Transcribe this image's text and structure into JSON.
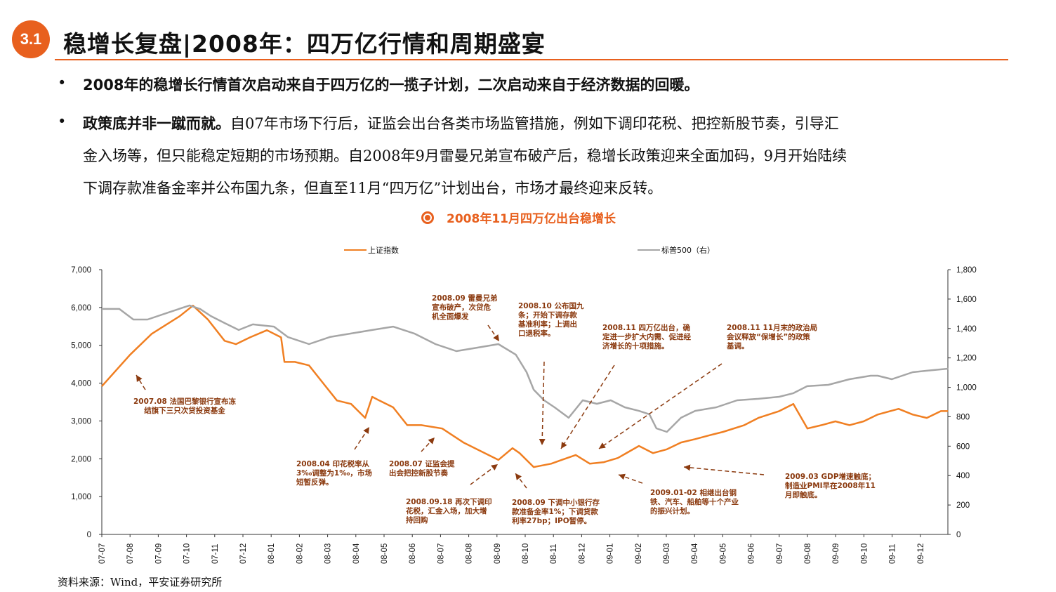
{
  "header": {
    "badge": "3.1",
    "title": "稳增长复盘|2008年：四万亿行情和周期盛宴"
  },
  "bullets": [
    {
      "marker": "•",
      "lines": [
        "2008年的稳增长行情首次启动来自于四万亿的一揽子计划，二次启动来自于经济数据的回暖。"
      ]
    },
    {
      "marker": "•",
      "bold_lead": "政策底并非一蹴而就。",
      "lines": [
        "自07年市场下行后，证监会出台各类市场监管措施，例如下调印花税、把控新股节奏，引导汇",
        "金入场等，但只能稳定短期的市场预期。自2008年9月雷曼兄弟宣布破产后，稳增长政策迎来全面加码，9月开始陆续",
        "下调存款准备金率并公布国九条，但直至11月“四万亿”计划出台，市场才最终迎来反转。"
      ]
    }
  ],
  "figure_title": "2008年11月四万亿出台稳增长",
  "source": "资料来源：Wind，平安证券研究所",
  "colors": {
    "accent": "#E8601E",
    "sse": "#F07F22",
    "sp500": "#A6A6A6",
    "annotation": "#8B3A0F"
  },
  "chart_data": {
    "type": "line",
    "title": "2008年11月四万亿出台稳增长",
    "x_unit": "months since 2007-07",
    "x_tick_labels": [
      "07-07",
      "07-08",
      "07-09",
      "07-10",
      "07-11",
      "07-12",
      "08-01",
      "08-02",
      "08-03",
      "08-04",
      "08-05",
      "08-06",
      "08-07",
      "08-08",
      "08-09",
      "08-10",
      "08-11",
      "08-12",
      "09-01",
      "09-02",
      "09-03",
      "09-04",
      "09-05",
      "09-06",
      "09-07",
      "09-08",
      "09-09",
      "09-10",
      "09-11",
      "09-12"
    ],
    "y_left": {
      "label": "",
      "ylim": [
        0,
        7000
      ],
      "ticks": [
        "0",
        "1,000",
        "2,000",
        "3,000",
        "4,000",
        "5,000",
        "6,000",
        "7,000"
      ]
    },
    "y_right": {
      "label": "",
      "ylim": [
        0,
        1800
      ],
      "ticks": [
        "0",
        "200",
        "400",
        "600",
        "800",
        "1,000",
        "1,200",
        "1,400",
        "1,600",
        "1,800"
      ]
    },
    "legend": {
      "placement": "top",
      "entries": [
        "上证指数",
        "标普500（右）"
      ]
    },
    "series": [
      {
        "name": "上证指数",
        "axis": "left",
        "x": [
          0,
          1.0,
          1.76,
          2.76,
          3.23,
          3.76,
          4.35,
          4.75,
          5.25,
          5.85,
          6.35,
          6.47,
          6.84,
          7.34,
          7.84,
          8.33,
          8.83,
          9.33,
          9.58,
          9.83,
          10.32,
          10.82,
          11.32,
          12.06,
          12.81,
          13.31,
          14.05,
          14.55,
          14.8,
          15.3,
          15.92,
          16.29,
          16.79,
          17.29,
          17.79,
          18.28,
          19.03,
          19.53,
          20.02,
          20.52,
          21.02,
          21.52,
          22.01,
          22.76,
          23.26,
          24.0,
          24.5,
          25.0,
          25.5,
          25.99,
          26.49,
          26.99,
          27.49,
          28.23,
          28.73,
          29.23,
          29.73,
          29.98
        ],
        "values": [
          3915,
          4750,
          5300,
          5770,
          6050,
          5680,
          5120,
          5030,
          5210,
          5400,
          5210,
          4560,
          4560,
          4470,
          4000,
          3540,
          3450,
          3080,
          3640,
          3540,
          3360,
          2890,
          2890,
          2800,
          2430,
          2245,
          1970,
          2280,
          2150,
          1780,
          1870,
          1970,
          2100,
          1870,
          1910,
          2020,
          2340,
          2150,
          2250,
          2430,
          2520,
          2620,
          2710,
          2890,
          3080,
          3260,
          3450,
          2800,
          2890,
          2990,
          2890,
          2990,
          3170,
          3320,
          3170,
          3080,
          3260,
          3260
        ]
      },
      {
        "name": "标普500（右）",
        "axis": "right",
        "x": [
          0,
          0.62,
          1.12,
          1.62,
          2.36,
          3.11,
          3.48,
          3.86,
          4.35,
          4.85,
          5.35,
          6.1,
          6.59,
          7.34,
          8.08,
          8.83,
          9.58,
          10.32,
          11.07,
          11.82,
          12.56,
          13.31,
          14.05,
          14.67,
          15.05,
          15.3,
          15.67,
          16.04,
          16.54,
          17.04,
          17.54,
          18.03,
          18.53,
          19.03,
          19.4,
          19.65,
          20.02,
          20.52,
          21.02,
          21.77,
          22.51,
          23.26,
          24.0,
          24.5,
          24.99,
          25.74,
          26.49,
          27.24,
          27.49,
          27.99,
          28.73,
          29.23,
          29.98
        ],
        "values": [
          1533,
          1533,
          1461,
          1461,
          1509,
          1557,
          1533,
          1485,
          1437,
          1390,
          1428,
          1413,
          1342,
          1294,
          1342,
          1366,
          1390,
          1413,
          1366,
          1294,
          1246,
          1270,
          1294,
          1222,
          1103,
          984,
          912,
          864,
          793,
          912,
          888,
          912,
          864,
          840,
          817,
          721,
          697,
          793,
          840,
          864,
          912,
          922,
          936,
          960,
          1008,
          1017,
          1055,
          1079,
          1079,
          1055,
          1103,
          1113,
          1127
        ]
      }
    ],
    "annotations": [
      {
        "id": "a0708",
        "text": "2007.08 法国巴黎银行宣布冻\n结旗下三只次贷投资基金"
      },
      {
        "id": "a0804",
        "text": "2008.04 印花税率从\n3‰调整为1‰，市场\n短暂反弹。"
      },
      {
        "id": "a0807",
        "text": "2008.07 证监会提\n出会把控新股节奏"
      },
      {
        "id": "a080918",
        "text": "2008.09.18 再次下调印\n花税，汇金入场，加大增\n持回购"
      },
      {
        "id": "a0809b",
        "text": "2008.09 下调中小银行存\n款准备金率1%；下调贷款\n利率27bp；IPO暂停。"
      },
      {
        "id": "a0809a",
        "text": "2008.09 雷曼兄弟\n宣布破产，次贷危\n机全面爆发"
      },
      {
        "id": "a0810",
        "text": "2008.10 公布国九\n条；开始下调存款\n基准利率；上调出\n口退税率。"
      },
      {
        "id": "a0811a",
        "text": "2008.11 四万亿出台，确\n定进一步扩大内需、促进经\n济增长的十项措施。"
      },
      {
        "id": "a0811b",
        "text": "2008.11 11月末的政治局\n会议释放“保增长”的政策\n基调。"
      },
      {
        "id": "a0901",
        "text": "2009.01-02 相继出台钢\n铁、汽车、船舶等十个产业\n的振兴计划。"
      },
      {
        "id": "a0903",
        "text": "2009.03 GDP增速触底；\n制造业PMI早在2008年11\n月即触底。"
      }
    ]
  }
}
